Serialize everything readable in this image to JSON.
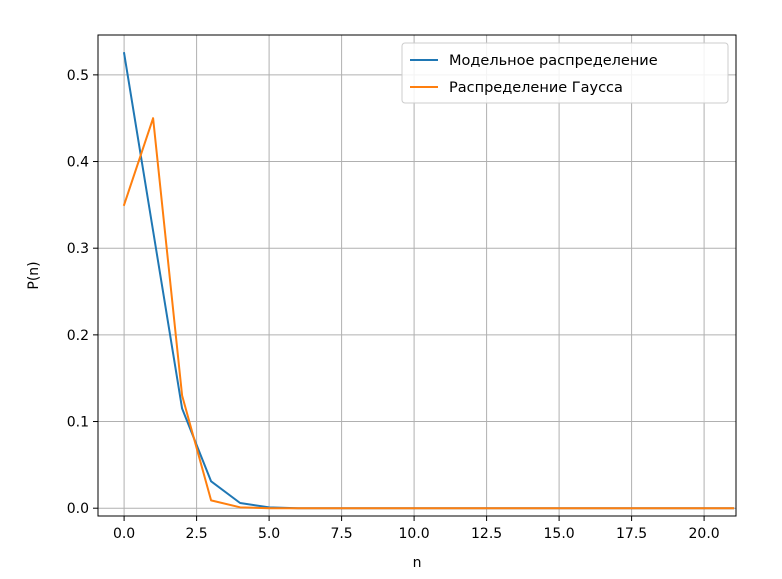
{
  "chart_data": {
    "type": "line",
    "title": "",
    "xlabel": "n",
    "ylabel": "P(n)",
    "xlim": [
      -0.9,
      21.1
    ],
    "ylim": [
      -0.009,
      0.546
    ],
    "grid": true,
    "legend_position": "top-right",
    "xticks": [
      0,
      2.5,
      5,
      7.5,
      10,
      12.5,
      15,
      17.5,
      20
    ],
    "xtick_labels": [
      "0.0",
      "2.5",
      "5.0",
      "7.5",
      "10.0",
      "12.5",
      "15.0",
      "17.5",
      "20.0"
    ],
    "yticks": [
      0,
      0.1,
      0.2,
      0.3,
      0.4,
      0.5
    ],
    "ytick_labels": [
      "0.0",
      "0.1",
      "0.2",
      "0.3",
      "0.4",
      "0.5"
    ],
    "x": [
      0,
      1,
      2,
      3,
      4,
      5,
      6,
      7,
      8,
      9,
      10,
      11,
      12,
      13,
      14,
      15,
      16,
      17,
      18,
      19,
      20,
      21
    ],
    "series": [
      {
        "name": "Модельное распределение",
        "color": "#1f77b4",
        "values": [
          0.525,
          0.32,
          0.115,
          0.031,
          0.006,
          0.001,
          0,
          0,
          0,
          0,
          0,
          0,
          0,
          0,
          0,
          0,
          0,
          0,
          0,
          0,
          0,
          0
        ]
      },
      {
        "name": "Распределение Гаусса",
        "color": "#ff7f0e",
        "values": [
          0.35,
          0.45,
          0.13,
          0.009,
          0.001,
          0,
          0,
          0,
          0,
          0,
          0,
          0,
          0,
          0,
          0,
          0,
          0,
          0,
          0,
          0,
          0,
          0
        ]
      }
    ]
  }
}
